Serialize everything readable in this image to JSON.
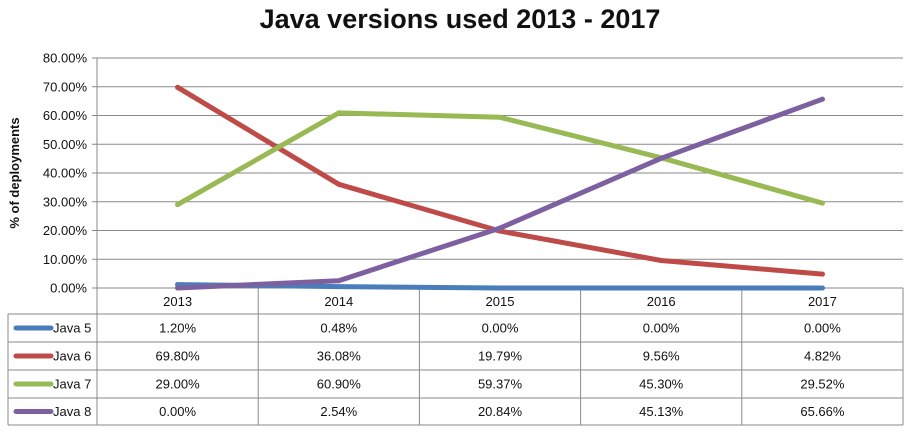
{
  "chart_data": {
    "type": "line",
    "title": "Java versions used 2013 - 2017",
    "ylabel": "% of deployments",
    "xlabel": "",
    "categories": [
      "2013",
      "2014",
      "2015",
      "2016",
      "2017"
    ],
    "ylim": [
      0,
      80
    ],
    "yticks": [
      "0.00%",
      "10.00%",
      "20.00%",
      "30.00%",
      "40.00%",
      "50.00%",
      "60.00%",
      "70.00%",
      "80.00%"
    ],
    "grid": true,
    "legend": "data-table-left",
    "series": [
      {
        "name": "Java 5",
        "color": "#4a7ebb",
        "values": [
          1.2,
          0.48,
          0.0,
          0.0,
          0.0
        ],
        "labels": [
          "1.20%",
          "0.48%",
          "0.00%",
          "0.00%",
          "0.00%"
        ]
      },
      {
        "name": "Java 6",
        "color": "#be4b48",
        "values": [
          69.8,
          36.08,
          19.79,
          9.56,
          4.82
        ],
        "labels": [
          "69.80%",
          "36.08%",
          "19.79%",
          "9.56%",
          "4.82%"
        ]
      },
      {
        "name": "Java 7",
        "color": "#98b954",
        "values": [
          29.0,
          60.9,
          59.37,
          45.3,
          29.52
        ],
        "labels": [
          "29.00%",
          "60.90%",
          "59.37%",
          "45.30%",
          "29.52%"
        ]
      },
      {
        "name": "Java 8",
        "color": "#7d60a0",
        "values": [
          0.0,
          2.54,
          20.84,
          45.13,
          65.66
        ],
        "labels": [
          "0.00%",
          "2.54%",
          "20.84%",
          "45.13%",
          "65.66%"
        ]
      }
    ]
  }
}
